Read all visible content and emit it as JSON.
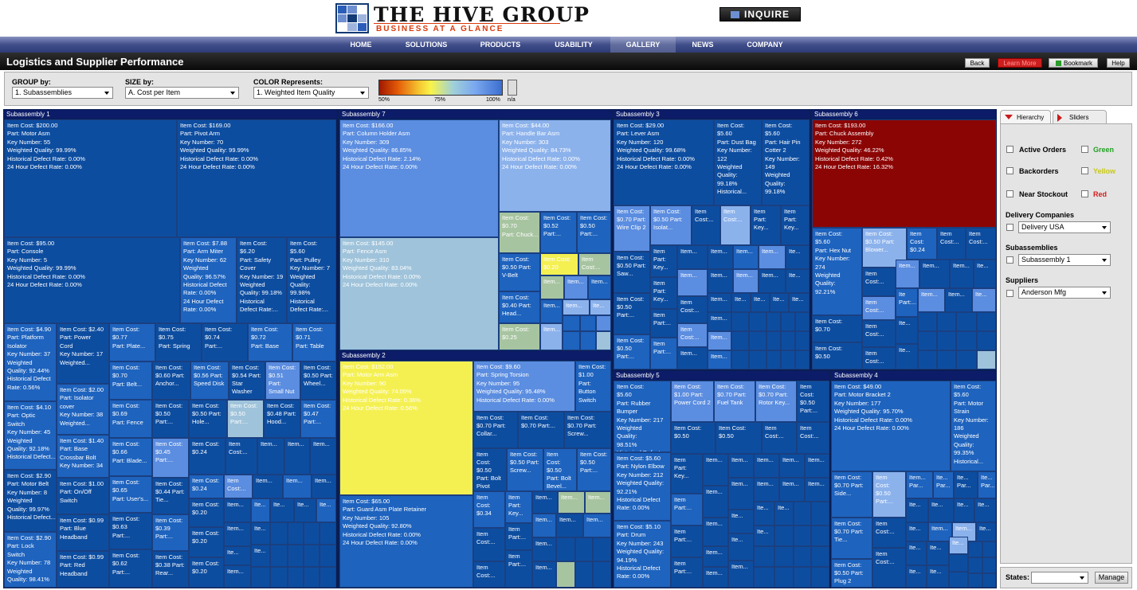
{
  "header": {
    "logo_title": "THE HIVE GROUP",
    "logo_subtitle": "BUSINESS AT A GLANCE",
    "inquire": "INQUIRE"
  },
  "nav": [
    "HOME",
    "SOLUTIONS",
    "PRODUCTS",
    "USABILITY",
    "GALLERY",
    "NEWS",
    "COMPANY"
  ],
  "page_title": "Logistics and Supplier Performance",
  "toolbar": {
    "back": "Back",
    "learn_more": "Learn More",
    "bookmark": "Bookmark",
    "help": "Help"
  },
  "controls": {
    "group_label": "GROUP by:",
    "group_value": "1. Subassemblies",
    "size_label": "SIZE by:",
    "size_value": "A. Cost per Item",
    "color_label": "COLOR Represents:",
    "color_value": "1. Weighted Item Quality",
    "legend": [
      "50%",
      "75%",
      "100%",
      "n/a"
    ]
  },
  "colors": {
    "dark": "#0d4da0",
    "mid": "#1e63be",
    "blue": "#5b8de0",
    "light": "#8cb2ec",
    "pale": "#9fc3da",
    "sage": "#a7c4a0",
    "yellow": "#f5f052",
    "red": "#8c0505"
  },
  "groups": [
    "Subassembly 1",
    "Subassembly 7",
    "Subassembly 3",
    "Subassembly 6",
    "Subassembly 2",
    "Subassembly 5",
    "Subassembly 4"
  ],
  "cells": [
    {
      "t": [
        "Item Cost: $200.00",
        "Part: Motor Asm",
        "Key Number: 55",
        "Weighted Quality: 99.99%",
        "Historical Defect Rate: 0.00%",
        "24 Hour Defect Rate: 0.00%"
      ]
    },
    {
      "t": [
        "Item Cost: $169.00",
        "Part: Pivot Arm",
        "Key Number: 70",
        "Weighted Quality: 99.99%",
        "Historical Defect Rate: 0.00%",
        "24 Hour Defect Rate: 0.00%"
      ]
    },
    {
      "t": [
        "Item Cost: $95.00",
        "Part: Console",
        "Key Number: 5",
        "Weighted Quality: 99.99%",
        "Historical Defect Rate: 0.00%",
        "24 Hour Defect Rate: 0.00%"
      ]
    },
    {
      "t": [
        "Item Cost: $7.88",
        "Part: Arm Miter",
        "Key Number: 62",
        "Weighted",
        "Quality: 96.57%",
        "Historical Defect",
        "Rate: 0.00%",
        "24 Hour Defect",
        "Rate: 0.00%"
      ]
    },
    {
      "t": [
        "Item Cost:",
        "$6.20",
        "Part: Safety",
        "Cover",
        "Key Number: 19",
        "Weighted",
        "Quality: 99.18%",
        "Historical",
        "Defect Rate:..."
      ]
    },
    {
      "t": [
        "Item Cost:",
        "$5.60",
        "Part: Pulley",
        "Key Number: 7",
        "Weighted",
        "Quality:",
        "99.98%",
        "Historical",
        "Defect Rate:..."
      ]
    },
    {
      "t": [
        "Item Cost: $4.90",
        "Part: Platform",
        "Isolator",
        "Key Number: 37",
        "Weighted",
        "Quality: 92.44%",
        "Historical Defect",
        "Rate: 0.56%"
      ]
    },
    {
      "t": [
        "Item Cost: $4.10",
        "Part: Optic",
        "Switch",
        "Key Number: 45",
        "Weighted",
        "Quality: 92.18%",
        "Historical Defect..."
      ]
    },
    {
      "t": [
        "Item Cost: $2.90",
        "Part: Motor Belt",
        "Key Number: 8",
        "Weighted",
        "Quality: 99.97%",
        "Historical Defect..."
      ]
    },
    {
      "t": [
        "Item Cost: $2.90",
        "Part: Lock",
        "Switch",
        "Key Number: 78",
        "Weighted",
        "Quality: 98.41%"
      ]
    },
    {
      "t": [
        "Item Cost: $2.40",
        "Part: Power",
        "Cord",
        "Key Number: 17",
        "Weighted..."
      ]
    },
    {
      "t": [
        "Item Cost: $2.00",
        "Part: Isolator",
        "cover",
        "Key Number: 38",
        "Weighted..."
      ]
    },
    {
      "t": [
        "Item Cost: $1.40",
        "Part: Base",
        "Crossbar Bolt",
        "Key Number: 34"
      ]
    },
    {
      "t": [
        "Item Cost: $1.00",
        "Part: On/Off",
        "Switch"
      ]
    },
    {
      "t": [
        "Item Cost: $0.99",
        "Part: Blue",
        "Headband"
      ]
    },
    {
      "t": [
        "Item Cost: $0.99",
        "Part: Red",
        "Headband"
      ]
    },
    {
      "t": [
        "Item Cost:",
        "$0.77",
        "Part: Plate..."
      ]
    },
    {
      "t": [
        "Item Cost:",
        "$0.75",
        "Part: Spring"
      ]
    },
    {
      "t": [
        "Item Cost:",
        "$0.74",
        "Part:..."
      ]
    },
    {
      "t": [
        "Item Cost:",
        "$0.72",
        "Part: Base"
      ]
    },
    {
      "t": [
        "Item Cost:",
        "$0.71",
        "Part: Table"
      ]
    },
    {
      "t": [
        "Item Cost:",
        "$0.70",
        "Part: Belt..."
      ]
    },
    {
      "t": [
        "Item Cost:",
        "$0.69",
        "Part: Fence"
      ]
    },
    {
      "t": [
        "Item Cost:",
        "$0.66",
        "Part: Blade..."
      ]
    },
    {
      "t": [
        "Item Cost:",
        "$0.65",
        "Part: User's..."
      ]
    },
    {
      "t": [
        "Item Cost:",
        "$0.63",
        "Part:..."
      ]
    },
    {
      "t": [
        "Item Cost:",
        "$0.62",
        "Part:..."
      ]
    },
    {
      "t": [
        "Item Cost: $166.00",
        "Part: Column Holder Asm",
        "Key Number: 309",
        "Weighted Quality: 86.85%",
        "Historical Defect Rate: 2.14%",
        "24 Hour Defect Rate: 0.00%"
      ]
    },
    {
      "t": [
        "Item Cost: $44.00",
        "Part: Handle Bar Asm",
        "Key Number: 303",
        "Weighted Quality: 84.73%",
        "Historical Defect Rate: 0.00%",
        "24 Hour Defect Rate: 0.00%"
      ]
    },
    {
      "t": [
        "Item Cost: $145.00",
        "Part: Fence Asm",
        "Key Number: 310",
        "Weighted Quality: 83.04%",
        "Historical Defect Rate: 0.00%",
        "24 Hour Defect Rate: 0.00%"
      ]
    },
    {
      "t": [
        "Item Cost:",
        "$0.70",
        "Part: Chuck..."
      ]
    },
    {
      "t": [
        "Item Cost:",
        "$0.20"
      ]
    },
    {
      "t": [
        "Item Cost:",
        "$0.25"
      ]
    },
    {
      "t": [
        "Item Cost: $152.00",
        "Part: Motor Arm Asm",
        "Key Number: 90",
        "Weighted Quality: 74.05%",
        "Historical Defect Rate: 0.36%",
        "24 Hour Defect Rate: 0.56%"
      ]
    },
    {
      "t": [
        "Item Cost: $9.60",
        "Part: Spring Torsion",
        "Key Number: 95",
        "Weighted Quality: 95.48%",
        "Historical Defect Rate: 0.00%"
      ]
    },
    {
      "t": [
        "Item Cost:",
        "$1.00",
        "Part:",
        "Button",
        "Switch"
      ]
    },
    {
      "t": [
        "Item Cost: $65.00",
        "Part: Guard Asm Plate Retainer",
        "Key Number: 105",
        "Weighted Quality: 92.80%",
        "Historical Defect Rate: 0.00%",
        "24 Hour Defect Rate: 0.00%"
      ]
    },
    {
      "t": [
        "Item Cost: $29.00",
        "Part: Lever Asm",
        "Key Number: 120",
        "Weighted Quality: 99.68%",
        "Historical Defect Rate: 0.00%",
        "24 Hour Defect Rate: 0.00%"
      ]
    },
    {
      "t": [
        "Item Cost:",
        "$5.60",
        "Part: Dust Bag",
        "Key Number:",
        "122",
        "Weighted",
        "Quality:",
        "99.18%",
        "Historical..."
      ]
    },
    {
      "t": [
        "Item Cost:",
        "$5.60",
        "Part: Hair Pin",
        "Cotter 2",
        "Key Number:",
        "149",
        "Weighted",
        "Quality:",
        "99.18%"
      ]
    },
    {
      "t": [
        "Item Cost: $193.00",
        "Part: Chuck Assembly",
        "Key Number: 272",
        "Weighted Quality: 46.22%",
        "Historical Defect Rate: 0.42%",
        "24 Hour Defect Rate: 16.32%"
      ]
    },
    {
      "t": [
        "Item Cost:",
        "$5.60",
        "Part: Hex Nut",
        "Key Number:",
        "274",
        "Weighted",
        "Quality:",
        "92.21%"
      ]
    },
    {
      "t": [
        "Item Cost:",
        "$5.60",
        "Part: Rubber",
        "Bumper",
        "Key Number: 217",
        "Weighted",
        "Quality:",
        "98.51%",
        "Historical Defect..."
      ]
    },
    {
      "t": [
        "Item Cost: $5.60",
        "Part: Nylon Elbow",
        "Key Number: 212",
        "Weighted Quality:",
        "92.21%",
        "Historical Defect",
        "Rate: 0.00%"
      ]
    },
    {
      "t": [
        "Item Cost: $5.10",
        "Part: Drum",
        "Key Number: 243",
        "Weighted Quality:",
        "94.19%",
        "Historical Defect",
        "Rate: 0.00%"
      ]
    },
    {
      "t": [
        "Item Cost: $49.00",
        "Part: Motor Bracket 2",
        "Key Number: 177",
        "Weighted Quality: 95.70%",
        "Historical Defect Rate: 0.00%",
        "24 Hour Defect Rate: 0.00%"
      ]
    },
    {
      "t": [
        "Item Cost:",
        "$5.60",
        "Part: Motor",
        "Strain",
        "Key Number:",
        "186",
        "Weighted",
        "Quality:",
        "99.35%",
        "Historical..."
      ]
    }
  ],
  "side": {
    "tabs": [
      "Hierarchy",
      "Sliders"
    ],
    "filters": [
      "Active Orders",
      "Backorders",
      "Near Stockout"
    ],
    "status": [
      "Green",
      "Yellow",
      "Red"
    ],
    "sections": [
      {
        "label": "Delivery Companies",
        "value": "Delivery USA"
      },
      {
        "label": "Subassemblies",
        "value": "Subassembly 1"
      },
      {
        "label": "Suppliers",
        "value": "Anderson Mfg"
      }
    ],
    "states_label": "States:",
    "manage": "Manage"
  }
}
